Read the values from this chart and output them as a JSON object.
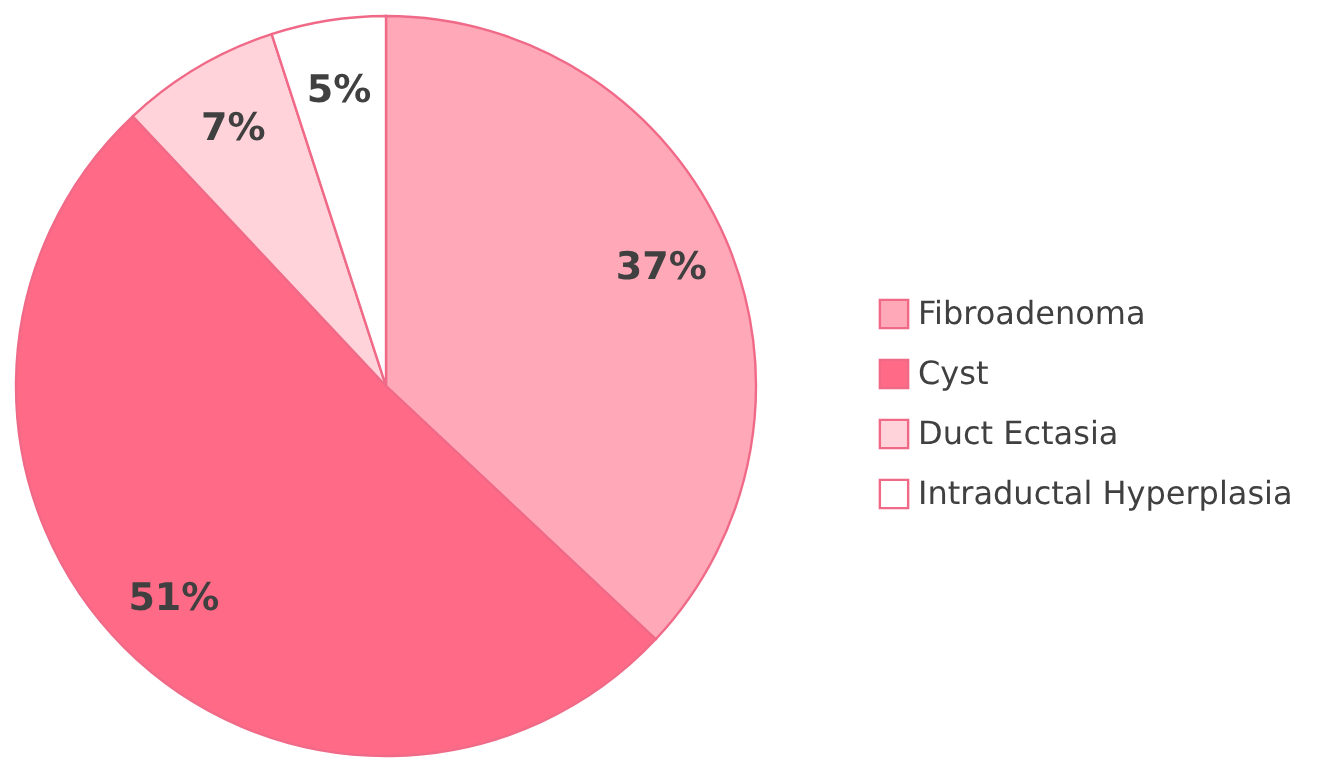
{
  "chart_data": {
    "type": "pie",
    "categories": [
      "Fibroadenoma",
      "Cyst",
      "Duct Ectasia",
      "Intraductal Hyperplasia"
    ],
    "values": [
      37,
      51,
      7,
      5
    ],
    "colors": [
      "#ffa8b8",
      "#ff6b86",
      "#ffd3d9",
      "#ffffff"
    ],
    "value_labels": [
      "37%",
      "51%",
      "7%",
      "5%"
    ],
    "legend": "right"
  }
}
